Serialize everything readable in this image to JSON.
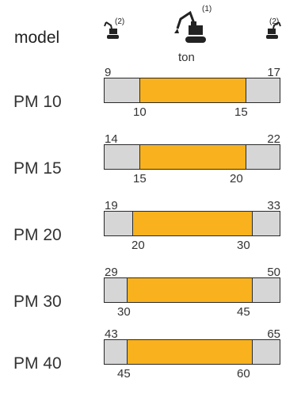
{
  "header": {
    "column_label": "model",
    "unit": "ton",
    "icons": [
      {
        "name": "small-excavator-icon-left",
        "note": "(2)"
      },
      {
        "name": "excavator-icon-center",
        "note": "(1)"
      },
      {
        "name": "small-excavator-icon-right",
        "note": "(2)"
      }
    ]
  },
  "colors": {
    "range_fill": "#f9b21d",
    "range_track": "#d6d6d6",
    "outline": "#2a2a2a"
  },
  "models": [
    {
      "label": "PM 10",
      "outer_min": "9",
      "outer_max": "17",
      "inner_min": "10",
      "inner_max": "15"
    },
    {
      "label": "PM 15",
      "outer_min": "14",
      "outer_max": "22",
      "inner_min": "15",
      "inner_max": "20"
    },
    {
      "label": "PM 20",
      "outer_min": "19",
      "outer_max": "33",
      "inner_min": "20",
      "inner_max": "30"
    },
    {
      "label": "PM 30",
      "outer_min": "29",
      "outer_max": "50",
      "inner_min": "30",
      "inner_max": "45"
    },
    {
      "label": "PM 40",
      "outer_min": "43",
      "outer_max": "65",
      "inner_min": "45",
      "inner_max": "60"
    }
  ]
}
